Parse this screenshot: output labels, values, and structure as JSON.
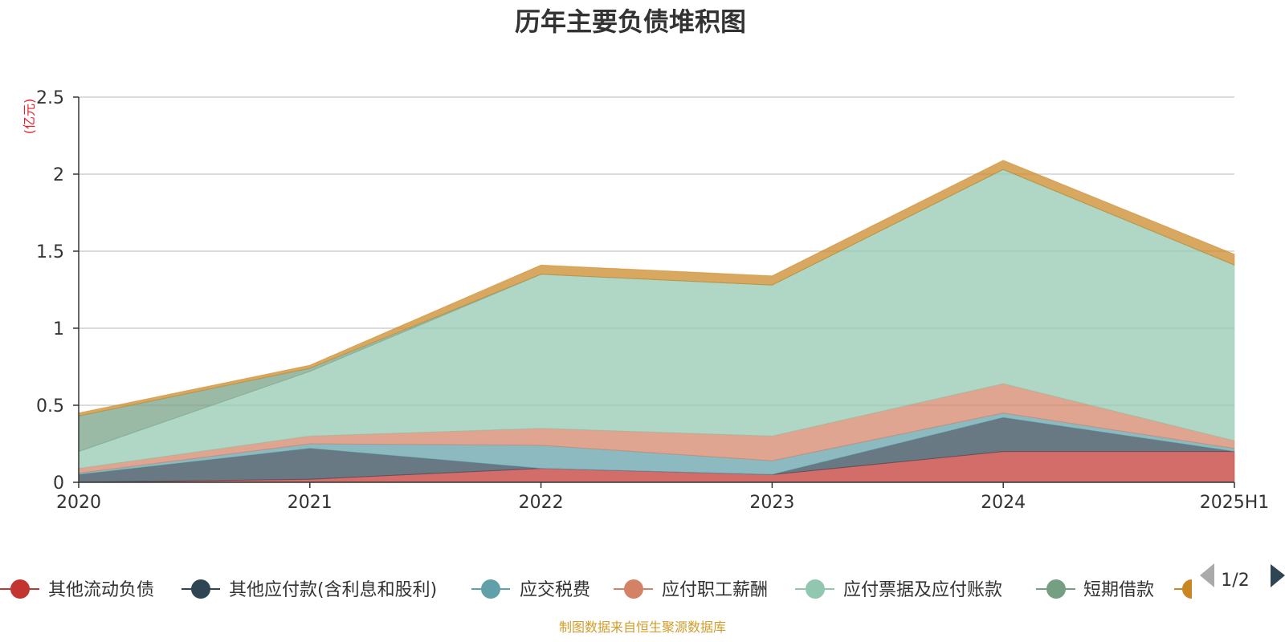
{
  "chart_data": {
    "type": "area",
    "title": "历年主要负债堆积图",
    "unit_label": "(亿元)",
    "categories": [
      "2020",
      "2021",
      "2022",
      "2023",
      "2024",
      "2025H1"
    ],
    "ylim": [
      0,
      2.5
    ],
    "yticks": [
      "0",
      "0.5",
      "1",
      "1.5",
      "2",
      "2.5"
    ],
    "stacked": true,
    "grid": true,
    "legend_position": "bottom",
    "series": [
      {
        "name": "其他流动负债",
        "color": "#c23531",
        "values": [
          0.0,
          0.02,
          0.09,
          0.05,
          0.2,
          0.2
        ]
      },
      {
        "name": "其他应付款(含利息和股利)",
        "color": "#2f4554",
        "values": [
          0.05,
          0.2,
          0.0,
          0.0,
          0.22,
          0.0
        ]
      },
      {
        "name": "应交税费",
        "color": "#61a0a8",
        "values": [
          0.01,
          0.03,
          0.15,
          0.09,
          0.03,
          0.02
        ]
      },
      {
        "name": "应付职工薪酬",
        "color": "#d48265",
        "values": [
          0.03,
          0.05,
          0.11,
          0.16,
          0.19,
          0.05
        ]
      },
      {
        "name": "应付票据及应付账款",
        "color": "#91c7ae",
        "values": [
          0.11,
          0.42,
          1.0,
          0.98,
          1.39,
          1.14
        ]
      },
      {
        "name": "短期借款",
        "color": "#749f83",
        "values": [
          0.23,
          0.02,
          0.0,
          0.0,
          0.0,
          0.0
        ]
      },
      {
        "name": "",
        "color": "#ca8622",
        "values": [
          0.02,
          0.02,
          0.06,
          0.06,
          0.06,
          0.07
        ]
      }
    ]
  },
  "legend": {
    "page_label": "1/2"
  },
  "footer": {
    "source": "制图数据来自恒生聚源数据库"
  }
}
